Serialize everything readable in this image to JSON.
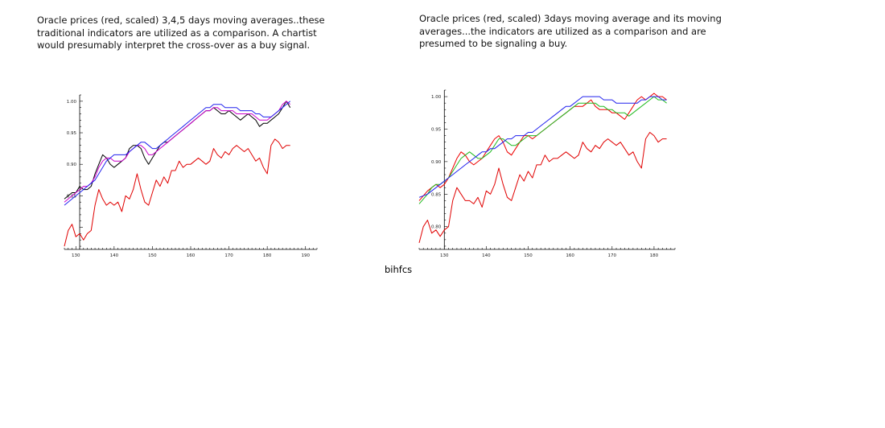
{
  "captions": {
    "left": "Oracle prices (red, scaled) 3,4,5 days moving averages..these traditional indicators are utilized as a comparison. A chartist would presumably interpret the cross-over as a buy signal.",
    "right": "Oracle prices (red, scaled) 3days moving average and its moving averages...the indicators are utilized as a comparison and are presumed to be signaling a buy."
  },
  "footer_note": "bihfcs",
  "chart_data": [
    {
      "type": "line",
      "xlim": [
        127,
        193
      ],
      "ylim": [
        0.765,
        1.01
      ],
      "x_ticks": [
        "130",
        "140",
        "150",
        "160",
        "170",
        "180",
        "190"
      ],
      "y_ticks": [
        "0.85",
        "0.90",
        "0.95",
        "1.00"
      ],
      "grid": false,
      "series": [
        {
          "color": "#e00000",
          "x": [
            127,
            128,
            129,
            130,
            131,
            132,
            133,
            134,
            135,
            136,
            137,
            138,
            139,
            140,
            141,
            142,
            143,
            144,
            145,
            146,
            147,
            148,
            149,
            150,
            151,
            152,
            153,
            154,
            155,
            156,
            157,
            158,
            159,
            160,
            161,
            162,
            163,
            164,
            165,
            166,
            167,
            168,
            169,
            170,
            171,
            172,
            173,
            174,
            175,
            176,
            177,
            178,
            179,
            180,
            181,
            182,
            183,
            184,
            185,
            186
          ],
          "y": [
            0.77,
            0.795,
            0.805,
            0.785,
            0.79,
            0.78,
            0.79,
            0.795,
            0.835,
            0.86,
            0.845,
            0.835,
            0.84,
            0.835,
            0.84,
            0.825,
            0.85,
            0.845,
            0.86,
            0.885,
            0.86,
            0.84,
            0.835,
            0.855,
            0.875,
            0.865,
            0.88,
            0.87,
            0.89,
            0.89,
            0.905,
            0.895,
            0.9,
            0.9,
            0.905,
            0.91,
            0.905,
            0.9,
            0.905,
            0.925,
            0.915,
            0.91,
            0.92,
            0.915,
            0.925,
            0.93,
            0.925,
            0.92,
            0.925,
            0.915,
            0.905,
            0.91,
            0.895,
            0.885,
            0.93,
            0.94,
            0.935,
            0.925,
            0.93,
            0.93
          ]
        },
        {
          "color": "#000000",
          "x": [
            127,
            129,
            130,
            131,
            132,
            133,
            134,
            135,
            136,
            137,
            138,
            139,
            140,
            141,
            142,
            143,
            144,
            145,
            146,
            147,
            148,
            149,
            150,
            151,
            152,
            153,
            154,
            155,
            156,
            157,
            158,
            159,
            160,
            161,
            162,
            163,
            164,
            165,
            166,
            167,
            168,
            169,
            170,
            171,
            172,
            173,
            174,
            175,
            176,
            177,
            178,
            179,
            180,
            181,
            182,
            183,
            184,
            185,
            186
          ],
          "y": [
            0.845,
            0.855,
            0.855,
            0.865,
            0.86,
            0.86,
            0.865,
            0.885,
            0.9,
            0.915,
            0.91,
            0.9,
            0.895,
            0.9,
            0.905,
            0.91,
            0.925,
            0.93,
            0.93,
            0.925,
            0.91,
            0.9,
            0.91,
            0.92,
            0.93,
            0.935,
            0.935,
            0.94,
            0.945,
            0.95,
            0.955,
            0.96,
            0.965,
            0.97,
            0.975,
            0.98,
            0.985,
            0.985,
            0.99,
            0.985,
            0.98,
            0.98,
            0.985,
            0.98,
            0.975,
            0.97,
            0.975,
            0.98,
            0.975,
            0.97,
            0.96,
            0.965,
            0.965,
            0.97,
            0.975,
            0.98,
            0.99,
            1.0,
            0.99
          ]
        },
        {
          "color": "#cc00cc",
          "x": [
            127,
            129,
            130,
            131,
            132,
            133,
            134,
            135,
            136,
            137,
            138,
            139,
            140,
            141,
            142,
            143,
            144,
            145,
            146,
            147,
            148,
            149,
            150,
            151,
            152,
            153,
            154,
            155,
            156,
            157,
            158,
            159,
            160,
            161,
            162,
            163,
            164,
            165,
            166,
            167,
            168,
            169,
            170,
            171,
            172,
            173,
            174,
            175,
            176,
            177,
            178,
            179,
            180,
            181,
            182,
            183,
            184,
            185,
            186
          ],
          "y": [
            0.84,
            0.85,
            0.855,
            0.86,
            0.865,
            0.865,
            0.87,
            0.88,
            0.895,
            0.905,
            0.91,
            0.91,
            0.905,
            0.905,
            0.905,
            0.91,
            0.92,
            0.925,
            0.93,
            0.93,
            0.925,
            0.915,
            0.915,
            0.92,
            0.925,
            0.93,
            0.935,
            0.94,
            0.945,
            0.95,
            0.955,
            0.96,
            0.965,
            0.97,
            0.975,
            0.98,
            0.985,
            0.985,
            0.99,
            0.99,
            0.985,
            0.985,
            0.985,
            0.985,
            0.98,
            0.98,
            0.98,
            0.98,
            0.98,
            0.975,
            0.97,
            0.97,
            0.97,
            0.975,
            0.98,
            0.985,
            0.995,
            1.0,
            0.995
          ]
        },
        {
          "color": "#2222ee",
          "x": [
            127,
            129,
            130,
            131,
            132,
            133,
            134,
            135,
            136,
            137,
            138,
            139,
            140,
            141,
            142,
            143,
            144,
            145,
            146,
            147,
            148,
            149,
            150,
            151,
            152,
            153,
            154,
            155,
            156,
            157,
            158,
            159,
            160,
            161,
            162,
            163,
            164,
            165,
            166,
            167,
            168,
            169,
            170,
            171,
            172,
            173,
            174,
            175,
            176,
            177,
            178,
            179,
            180,
            181,
            182,
            183,
            184,
            185,
            186
          ],
          "y": [
            0.835,
            0.845,
            0.85,
            0.855,
            0.86,
            0.865,
            0.87,
            0.875,
            0.885,
            0.895,
            0.905,
            0.91,
            0.915,
            0.915,
            0.915,
            0.915,
            0.92,
            0.925,
            0.93,
            0.935,
            0.935,
            0.93,
            0.925,
            0.925,
            0.93,
            0.935,
            0.94,
            0.945,
            0.95,
            0.955,
            0.96,
            0.965,
            0.97,
            0.975,
            0.98,
            0.985,
            0.99,
            0.99,
            0.995,
            0.995,
            0.995,
            0.99,
            0.99,
            0.99,
            0.99,
            0.985,
            0.985,
            0.985,
            0.985,
            0.98,
            0.98,
            0.975,
            0.975,
            0.975,
            0.98,
            0.985,
            0.99,
            0.995,
            1.0
          ]
        }
      ]
    },
    {
      "type": "line",
      "xlim": [
        124,
        185
      ],
      "ylim": [
        0.765,
        1.01
      ],
      "x_ticks": [
        "130",
        "140",
        "150",
        "160",
        "170",
        "180"
      ],
      "y_ticks": [
        "0.80",
        "0.85",
        "0.90",
        "0.95",
        "1.00"
      ],
      "grid": false,
      "series": [
        {
          "color": "#e00000",
          "x": [
            124,
            125,
            126,
            127,
            128,
            129,
            130,
            131,
            132,
            133,
            134,
            135,
            136,
            137,
            138,
            139,
            140,
            141,
            142,
            143,
            144,
            145,
            146,
            147,
            148,
            149,
            150,
            151,
            152,
            153,
            154,
            155,
            156,
            157,
            158,
            159,
            160,
            161,
            162,
            163,
            164,
            165,
            166,
            167,
            168,
            169,
            170,
            171,
            172,
            173,
            174,
            175,
            176,
            177,
            178,
            179,
            180,
            181,
            182,
            183
          ],
          "y": [
            0.775,
            0.8,
            0.81,
            0.79,
            0.795,
            0.785,
            0.795,
            0.8,
            0.84,
            0.86,
            0.85,
            0.84,
            0.84,
            0.835,
            0.845,
            0.83,
            0.855,
            0.85,
            0.865,
            0.89,
            0.865,
            0.845,
            0.84,
            0.86,
            0.88,
            0.87,
            0.885,
            0.875,
            0.895,
            0.895,
            0.91,
            0.9,
            0.905,
            0.905,
            0.91,
            0.915,
            0.91,
            0.905,
            0.91,
            0.93,
            0.92,
            0.915,
            0.925,
            0.92,
            0.93,
            0.935,
            0.93,
            0.925,
            0.93,
            0.92,
            0.91,
            0.915,
            0.9,
            0.89,
            0.935,
            0.945,
            0.94,
            0.93,
            0.935,
            0.935
          ]
        },
        {
          "color": "#ee0000",
          "x": [
            124,
            126,
            127,
            128,
            129,
            130,
            131,
            132,
            133,
            134,
            135,
            136,
            137,
            138,
            139,
            140,
            141,
            142,
            143,
            144,
            145,
            146,
            147,
            148,
            149,
            150,
            151,
            152,
            153,
            154,
            155,
            156,
            157,
            158,
            159,
            160,
            161,
            162,
            163,
            164,
            165,
            166,
            167,
            168,
            169,
            170,
            171,
            172,
            173,
            174,
            175,
            176,
            177,
            178,
            179,
            180,
            181,
            182,
            183
          ],
          "y": [
            0.84,
            0.855,
            0.86,
            0.865,
            0.86,
            0.865,
            0.875,
            0.89,
            0.905,
            0.915,
            0.91,
            0.9,
            0.895,
            0.9,
            0.905,
            0.915,
            0.925,
            0.935,
            0.94,
            0.93,
            0.915,
            0.91,
            0.92,
            0.93,
            0.94,
            0.94,
            0.935,
            0.94,
            0.945,
            0.95,
            0.955,
            0.96,
            0.965,
            0.97,
            0.975,
            0.98,
            0.985,
            0.985,
            0.985,
            0.99,
            0.995,
            0.985,
            0.98,
            0.98,
            0.98,
            0.975,
            0.975,
            0.97,
            0.965,
            0.975,
            0.985,
            0.995,
            1.0,
            0.995,
            1.0,
            1.005,
            1.0,
            1.0,
            0.995
          ]
        },
        {
          "color": "#22bb22",
          "x": [
            124,
            126,
            127,
            128,
            129,
            130,
            131,
            132,
            133,
            134,
            135,
            136,
            137,
            138,
            139,
            140,
            141,
            142,
            143,
            144,
            145,
            146,
            147,
            148,
            149,
            150,
            151,
            152,
            153,
            154,
            155,
            156,
            157,
            158,
            159,
            160,
            161,
            162,
            163,
            164,
            165,
            166,
            167,
            168,
            169,
            170,
            171,
            172,
            173,
            174,
            175,
            176,
            177,
            178,
            179,
            180,
            181,
            182,
            183
          ],
          "y": [
            0.835,
            0.85,
            0.86,
            0.865,
            0.865,
            0.87,
            0.875,
            0.885,
            0.895,
            0.905,
            0.91,
            0.915,
            0.91,
            0.905,
            0.905,
            0.91,
            0.915,
            0.925,
            0.935,
            0.935,
            0.93,
            0.925,
            0.925,
            0.93,
            0.935,
            0.94,
            0.94,
            0.94,
            0.945,
            0.95,
            0.955,
            0.96,
            0.965,
            0.97,
            0.975,
            0.98,
            0.985,
            0.99,
            0.99,
            0.99,
            0.99,
            0.99,
            0.985,
            0.985,
            0.98,
            0.98,
            0.975,
            0.975,
            0.975,
            0.97,
            0.975,
            0.98,
            0.985,
            0.99,
            0.995,
            1.0,
            0.995,
            0.995,
            0.99
          ]
        },
        {
          "color": "#2222ee",
          "x": [
            124,
            126,
            127,
            128,
            129,
            130,
            131,
            132,
            133,
            134,
            135,
            136,
            137,
            138,
            139,
            140,
            141,
            142,
            143,
            144,
            145,
            146,
            147,
            148,
            149,
            150,
            151,
            152,
            153,
            154,
            155,
            156,
            157,
            158,
            159,
            160,
            161,
            162,
            163,
            164,
            165,
            166,
            167,
            168,
            169,
            170,
            171,
            172,
            173,
            174,
            175,
            176,
            177,
            178,
            179,
            180,
            181,
            182,
            183
          ],
          "y": [
            0.845,
            0.85,
            0.855,
            0.86,
            0.865,
            0.87,
            0.875,
            0.88,
            0.885,
            0.89,
            0.895,
            0.9,
            0.905,
            0.91,
            0.915,
            0.915,
            0.92,
            0.92,
            0.925,
            0.93,
            0.935,
            0.935,
            0.94,
            0.94,
            0.94,
            0.945,
            0.945,
            0.95,
            0.955,
            0.96,
            0.965,
            0.97,
            0.975,
            0.98,
            0.985,
            0.985,
            0.99,
            0.995,
            1.0,
            1.0,
            1.0,
            1.0,
            1.0,
            0.995,
            0.995,
            0.995,
            0.99,
            0.99,
            0.99,
            0.99,
            0.99,
            0.99,
            0.995,
            0.995,
            1.0,
            1.0,
            1.0,
            0.995,
            0.995
          ]
        }
      ]
    }
  ]
}
